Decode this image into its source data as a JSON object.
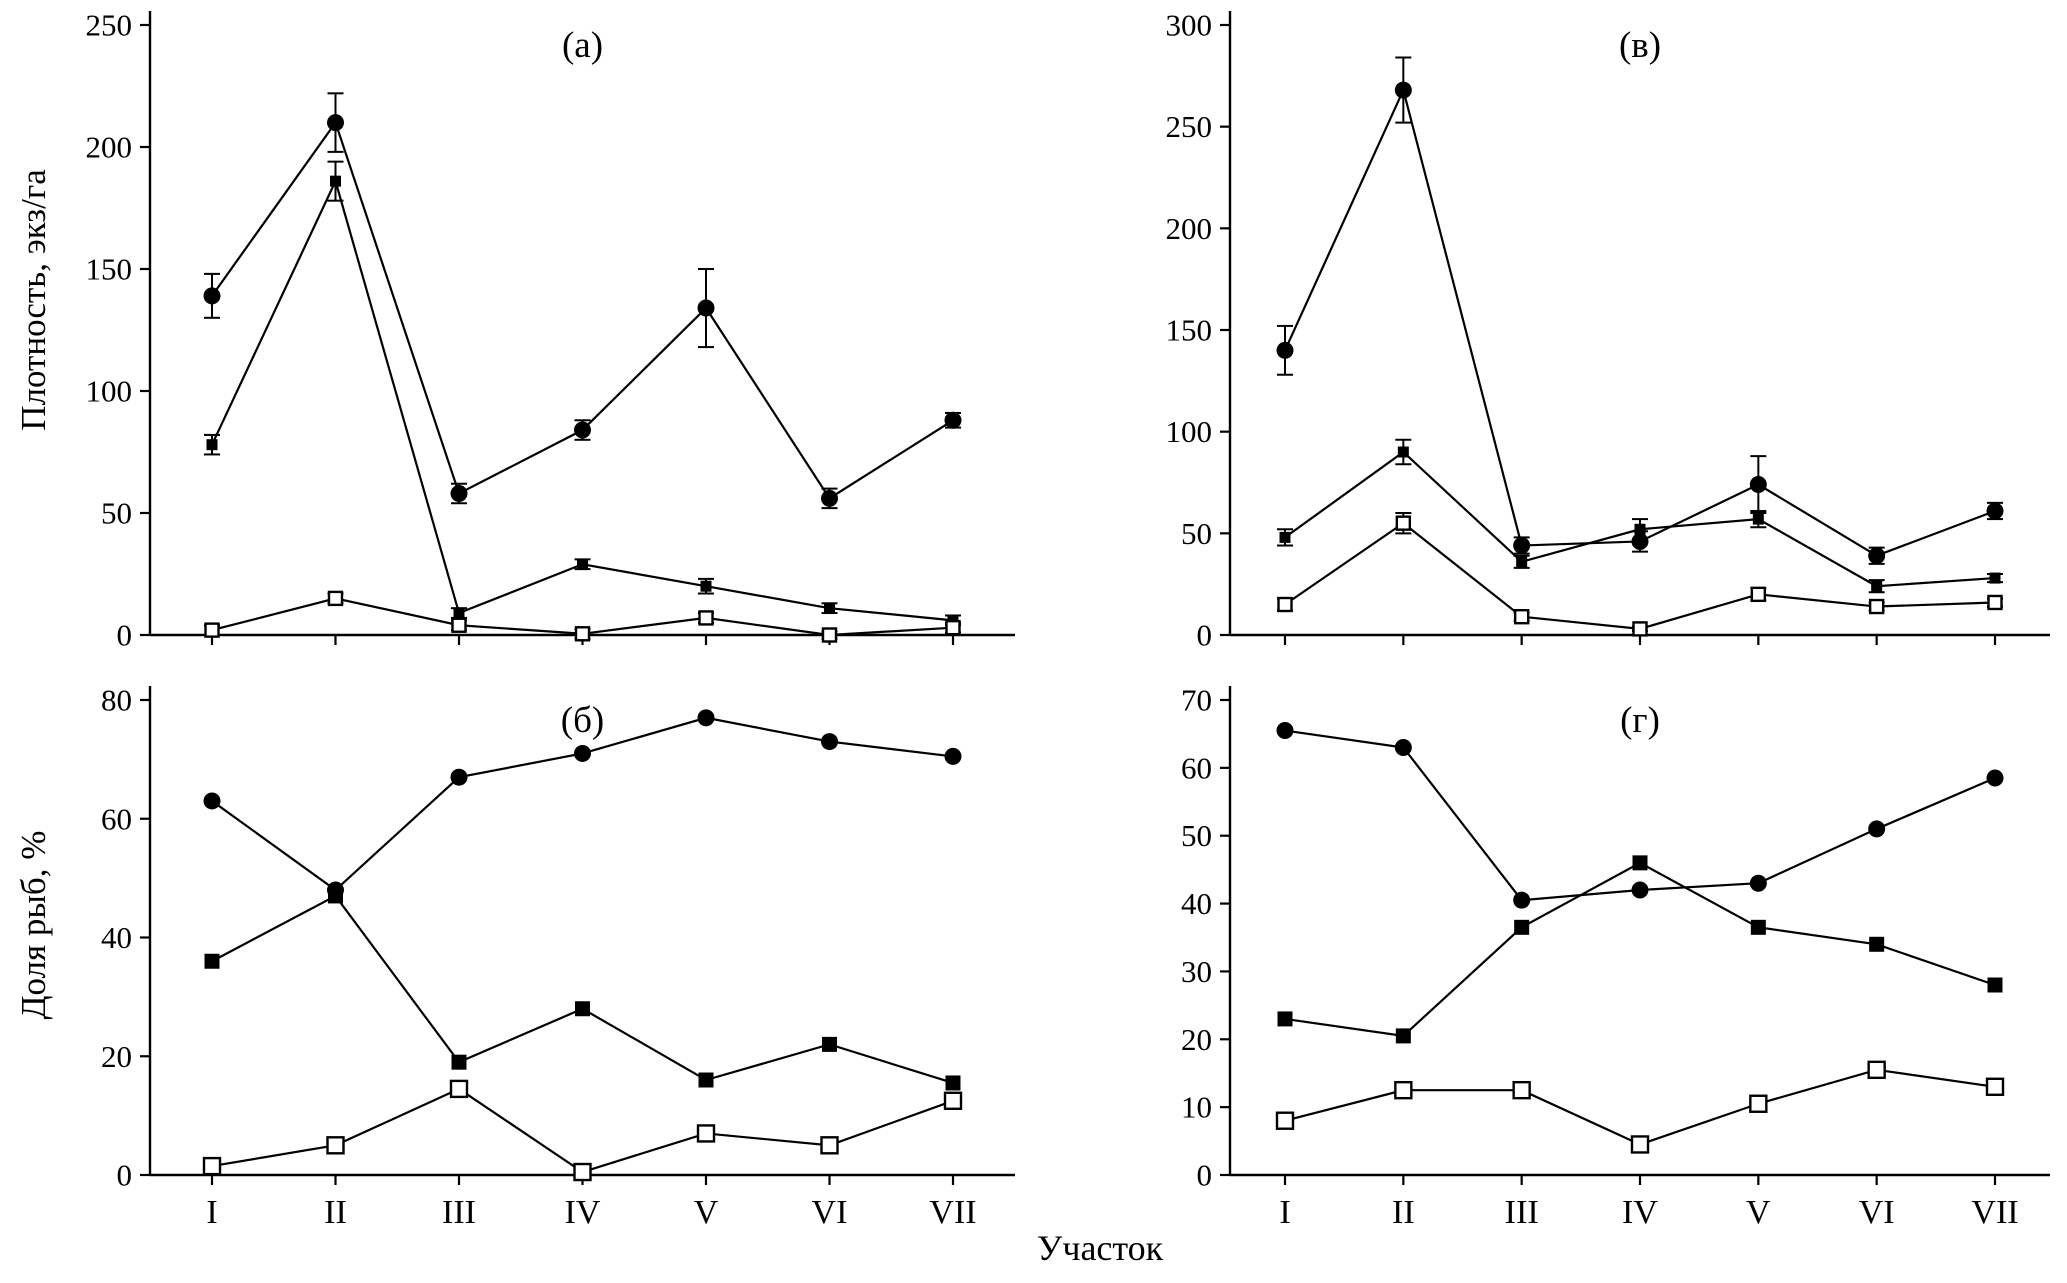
{
  "labels": {
    "y_top": "Плотность, экз/га",
    "y_bottom": "Доля рыб, %",
    "x": "Участок"
  },
  "categories": [
    "I",
    "II",
    "III",
    "IV",
    "V",
    "VI",
    "VII"
  ],
  "chart_data": [
    {
      "id": "a",
      "type": "line",
      "title": "(а)",
      "ylabel": "Плотность, экз/га",
      "xlabel": "Участок",
      "ylim": [
        0,
        250
      ],
      "ytick_step": 50,
      "show_x_labels": false,
      "grid": false,
      "legend": "none",
      "categories": [
        "I",
        "II",
        "III",
        "IV",
        "V",
        "VI",
        "VII"
      ],
      "series": [
        {
          "name": "filled-circle-series",
          "marker": "circle-filled",
          "values": [
            139,
            210,
            58,
            84,
            134,
            56,
            88
          ],
          "errors": [
            9,
            12,
            4,
            4,
            16,
            4,
            3
          ]
        },
        {
          "name": "filled-square-series",
          "marker": "square-filled",
          "values": [
            78,
            186,
            9,
            29,
            20,
            11,
            6
          ],
          "errors": [
            4,
            8,
            2,
            2,
            3,
            2,
            2
          ]
        },
        {
          "name": "open-square-series",
          "marker": "square-open",
          "values": [
            2,
            15,
            4,
            0.5,
            7,
            0,
            3
          ],
          "errors": [
            2,
            2,
            2,
            2,
            2,
            1.5,
            2
          ]
        }
      ]
    },
    {
      "id": "v",
      "type": "line",
      "title": "(в)",
      "ylabel": "Плотность, экз/га",
      "xlabel": "Участок",
      "ylim": [
        0,
        300
      ],
      "ytick_step": 50,
      "show_x_labels": false,
      "grid": false,
      "legend": "none",
      "categories": [
        "I",
        "II",
        "III",
        "IV",
        "V",
        "VI",
        "VII"
      ],
      "series": [
        {
          "name": "filled-circle-series",
          "marker": "circle-filled",
          "values": [
            140,
            268,
            44,
            46,
            74,
            39,
            61
          ],
          "errors": [
            12,
            16,
            4,
            5,
            14,
            4,
            4
          ]
        },
        {
          "name": "filled-square-series",
          "marker": "square-filled",
          "values": [
            48,
            90,
            36,
            52,
            57,
            24,
            28
          ],
          "errors": [
            4,
            6,
            3,
            5,
            4,
            3,
            2
          ]
        },
        {
          "name": "open-square-series",
          "marker": "square-open",
          "values": [
            15,
            55,
            9,
            3,
            20,
            14,
            16
          ],
          "errors": [
            3,
            5,
            2,
            1,
            3,
            2,
            2
          ]
        }
      ]
    },
    {
      "id": "b",
      "type": "line",
      "title": "(б)",
      "ylabel": "Доля рыб, %",
      "xlabel": "Участок",
      "ylim": [
        0,
        80
      ],
      "ytick_step": 20,
      "show_x_labels": true,
      "grid": false,
      "legend": "none",
      "categories": [
        "I",
        "II",
        "III",
        "IV",
        "V",
        "VI",
        "VII"
      ],
      "series": [
        {
          "name": "filled-circle-series",
          "marker": "circle-filled",
          "values": [
            63,
            48,
            67,
            71,
            77,
            73,
            70.5
          ]
        },
        {
          "name": "filled-square-series",
          "marker": "square-filled",
          "values": [
            36,
            47,
            19,
            28,
            16,
            22,
            15.5
          ]
        },
        {
          "name": "open-square-series",
          "marker": "square-open",
          "values": [
            1.5,
            5,
            14.5,
            0.5,
            7,
            5,
            12.5
          ]
        }
      ]
    },
    {
      "id": "g",
      "type": "line",
      "title": "(г)",
      "ylabel": "Доля рыб, %",
      "xlabel": "Участок",
      "ylim": [
        0,
        70
      ],
      "ytick_step": 10,
      "show_x_labels": true,
      "grid": false,
      "legend": "none",
      "categories": [
        "I",
        "II",
        "III",
        "IV",
        "V",
        "VI",
        "VII"
      ],
      "series": [
        {
          "name": "filled-circle-series",
          "marker": "circle-filled",
          "values": [
            65.5,
            63,
            40.5,
            42,
            43,
            51,
            58.5
          ]
        },
        {
          "name": "filled-square-series",
          "marker": "square-filled",
          "values": [
            23,
            20.5,
            36.5,
            46,
            36.5,
            34,
            28
          ]
        },
        {
          "name": "open-square-series",
          "marker": "square-open",
          "values": [
            8,
            12.5,
            12.5,
            4.5,
            10.5,
            15.5,
            13
          ]
        }
      ]
    }
  ]
}
